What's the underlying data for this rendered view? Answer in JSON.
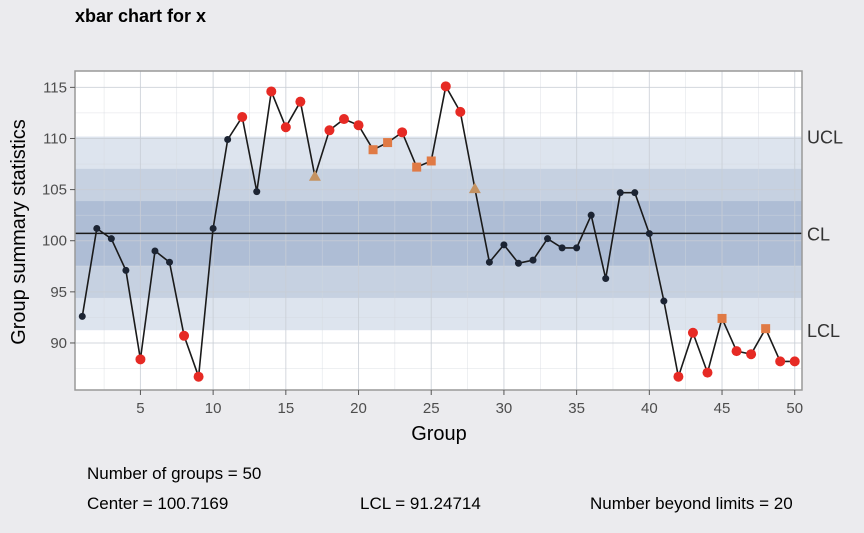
{
  "chart_data": {
    "type": "line",
    "title": "xbar chart for x",
    "xlabel": "Group",
    "ylabel": "Group summary statistics",
    "xlim": [
      0.5,
      50.5
    ],
    "ylim": [
      85.4,
      116.6
    ],
    "xticks": [
      5,
      10,
      15,
      20,
      25,
      30,
      35,
      40,
      45,
      50
    ],
    "yticks": [
      90,
      95,
      100,
      105,
      110,
      115
    ],
    "center": 100.7169,
    "ucl": 110.1867,
    "lcl": 91.24714,
    "zones": [
      {
        "lower": 91.24714,
        "upper": 110.1867,
        "color": "#dde4ee"
      },
      {
        "lower": 94.4037,
        "upper": 107.0301,
        "color": "#c6d1e1"
      },
      {
        "lower": 97.5603,
        "upper": 103.8735,
        "color": "#aebdd5"
      }
    ],
    "limit_labels": [
      "UCL",
      "CL",
      "LCL"
    ],
    "x": [
      1,
      2,
      3,
      4,
      5,
      6,
      7,
      8,
      9,
      10,
      11,
      12,
      13,
      14,
      15,
      16,
      17,
      18,
      19,
      20,
      21,
      22,
      23,
      24,
      25,
      26,
      27,
      28,
      29,
      30,
      31,
      32,
      33,
      34,
      35,
      36,
      37,
      38,
      39,
      40,
      41,
      42,
      43,
      44,
      45,
      46,
      47,
      48,
      49,
      50
    ],
    "y": [
      92.6,
      101.2,
      100.2,
      97.1,
      88.4,
      99.0,
      97.9,
      90.7,
      86.7,
      101.2,
      109.9,
      112.1,
      104.8,
      114.6,
      111.1,
      113.6,
      106.3,
      110.8,
      111.9,
      111.3,
      108.9,
      109.6,
      110.6,
      107.2,
      107.8,
      115.1,
      112.6,
      105.1,
      97.9,
      99.6,
      97.8,
      98.1,
      100.2,
      99.3,
      99.3,
      102.5,
      96.3,
      104.7,
      104.7,
      100.7,
      94.1,
      86.7,
      91.0,
      87.1,
      92.4,
      89.2,
      88.9,
      91.4,
      88.2,
      88.2
    ],
    "point_types": [
      "n",
      "n",
      "n",
      "n",
      "v",
      "n",
      "n",
      "v",
      "v",
      "n",
      "n",
      "v",
      "n",
      "v",
      "v",
      "v",
      "w",
      "v",
      "v",
      "v",
      "r",
      "r",
      "v",
      "r",
      "r",
      "v",
      "v",
      "w",
      "n",
      "n",
      "n",
      "n",
      "n",
      "n",
      "n",
      "n",
      "n",
      "n",
      "n",
      "n",
      "n",
      "v",
      "v",
      "v",
      "r",
      "v",
      "v",
      "r",
      "v",
      "v"
    ],
    "point_style_colors": {
      "n": "#1c2433",
      "v": "#e62a24",
      "r": "#e07a45",
      "w": "#c49261"
    },
    "line_color": "#1a1a1a",
    "grid": true
  },
  "stats": {
    "groups": "Number of groups = 50",
    "center": "Center = 100.7169",
    "lcl": "LCL = 91.24714",
    "beyond": "Number beyond limits = 20"
  }
}
